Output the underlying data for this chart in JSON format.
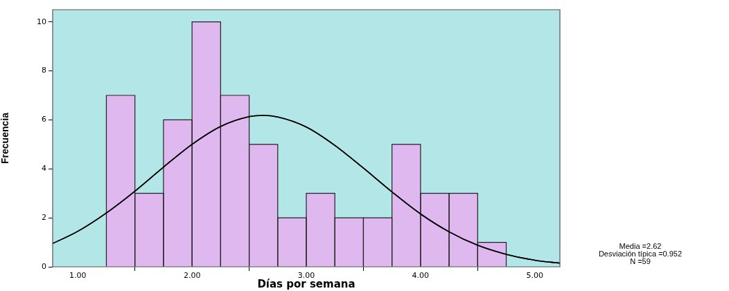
{
  "chart_data": {
    "type": "histogram",
    "xlabel": "Días por semana",
    "ylabel": "Frecuencia",
    "bins": [
      1.25,
      1.5,
      1.75,
      2.0,
      2.25,
      2.5,
      2.75,
      3.0,
      3.25,
      3.5,
      3.75,
      4.0,
      4.25,
      4.5,
      4.75
    ],
    "values": [
      7,
      3,
      6,
      10,
      7,
      5,
      2,
      3,
      2,
      2,
      5,
      3,
      3,
      1
    ],
    "color": "#dfb8f0",
    "series": [
      {
        "type": "line",
        "color": "#000000",
        "x": [
          0.78,
          1.0,
          1.25,
          1.5,
          1.75,
          2.0,
          2.25,
          2.5,
          2.62,
          2.75,
          3.0,
          3.25,
          3.5,
          3.75,
          4.0,
          4.25,
          4.5,
          4.75,
          5.0,
          5.22
        ],
        "values": [
          0.95,
          1.45,
          2.2,
          3.09,
          4.07,
          5.0,
          5.73,
          6.13,
          6.18,
          6.12,
          5.71,
          4.96,
          4.03,
          3.06,
          2.16,
          1.43,
          0.88,
          0.51,
          0.27,
          0.15
        ]
      }
    ],
    "xlim": [
      0.78,
      5.22
    ],
    "xticks": [
      {
        "value": 1,
        "label": "1.00"
      },
      {
        "value": 2,
        "label": "2.00"
      },
      {
        "value": 3,
        "label": "3.00"
      },
      {
        "value": 4,
        "label": "4.00"
      },
      {
        "value": 5,
        "label": "5.00"
      }
    ],
    "ylim": [
      0,
      10.5
    ],
    "yticks": [
      0,
      2,
      4,
      6,
      8,
      10
    ],
    "grid": false,
    "legend": false,
    "marker": "none",
    "line_style": "solid",
    "annotations": [
      "Media =2.62",
      "Desviación típica =0.952",
      "N =59"
    ]
  }
}
